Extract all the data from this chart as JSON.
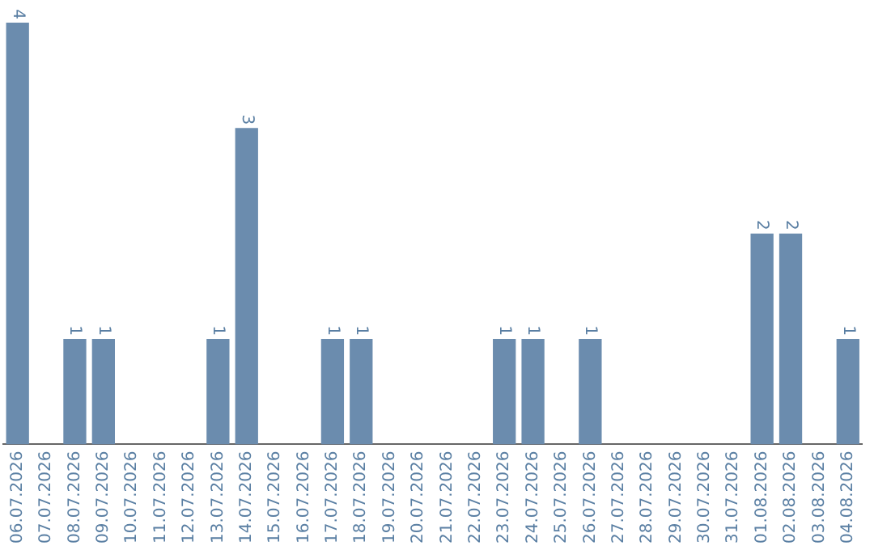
{
  "chart_data": {
    "type": "bar",
    "categories": [
      "06.07.2026",
      "07.07.2026",
      "08.07.2026",
      "09.07.2026",
      "10.07.2026",
      "11.07.2026",
      "12.07.2026",
      "13.07.2026",
      "14.07.2026",
      "15.07.2026",
      "16.07.2026",
      "17.07.2026",
      "18.07.2026",
      "19.07.2026",
      "20.07.2026",
      "21.07.2026",
      "22.07.2026",
      "23.07.2026",
      "24.07.2026",
      "25.07.2026",
      "26.07.2026",
      "27.07.2026",
      "28.07.2026",
      "29.07.2026",
      "30.07.2026",
      "31.07.2026",
      "01.08.2026",
      "02.08.2026",
      "03.08.2026",
      "04.08.2026"
    ],
    "values": [
      4,
      0,
      1,
      1,
      0,
      0,
      0,
      1,
      3,
      0,
      0,
      1,
      1,
      0,
      0,
      0,
      0,
      1,
      1,
      0,
      1,
      0,
      0,
      0,
      0,
      0,
      2,
      2,
      0,
      1
    ],
    "value_labels": [
      "4",
      null,
      "1",
      "1",
      null,
      null,
      null,
      "1",
      "3",
      null,
      null,
      "1",
      "1",
      null,
      null,
      null,
      null,
      "1",
      "1",
      null,
      "1",
      null,
      null,
      null,
      null,
      null,
      "2",
      "2",
      null,
      "1"
    ],
    "color": "#6b8cae",
    "grid": false,
    "legend": false
  }
}
